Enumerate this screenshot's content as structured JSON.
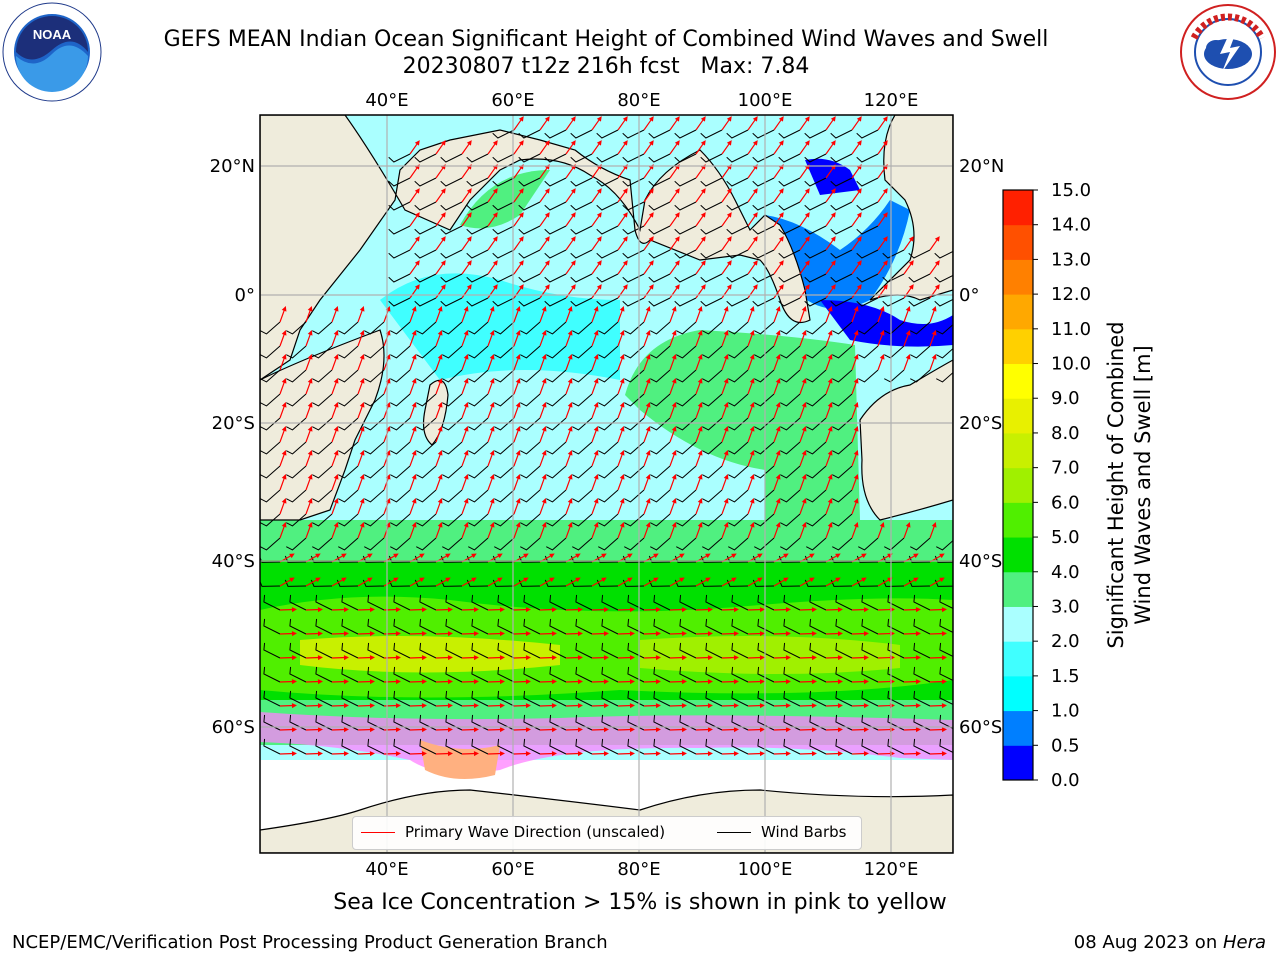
{
  "header": {
    "title": "GEFS MEAN Indian Ocean Significant Height of Combined Wind Waves and Swell",
    "subtitle": "20230807 t12z 216h fcst   Max: 7.84"
  },
  "logos": {
    "left": "noaa-logo",
    "left_text": "NOAA",
    "right": "nws-logo"
  },
  "map": {
    "region": "Indian Ocean",
    "lon_range": [
      20,
      130
    ],
    "lat_range": [
      -75,
      28
    ],
    "top_lon_ticks": [
      "40°E",
      "60°E",
      "80°E",
      "100°E",
      "120°E"
    ],
    "bottom_lon_ticks": [
      "40°E",
      "60°E",
      "80°E",
      "100°E",
      "120°E"
    ],
    "left_lat_ticks": [
      "20°N",
      "0°",
      "20°S",
      "40°S",
      "60°S"
    ],
    "right_lat_ticks": [
      "20°N",
      "0°",
      "20°S",
      "40°S",
      "60°S"
    ],
    "land_color": "#efecdc",
    "grid_color": "#b0b0b0",
    "arrow_color": "#ff0000",
    "barb_color": "#000000"
  },
  "legend": {
    "wave_label": "Primary Wave Direction (unscaled)",
    "barb_label": "Wind Barbs"
  },
  "colorbar": {
    "label_line1": "Significant Height of Combined",
    "label_line2": "Wind Waves and Swell [m]",
    "ticks": [
      "0.0",
      "0.5",
      "1.0",
      "1.5",
      "2.0",
      "3.0",
      "4.0",
      "5.0",
      "6.0",
      "7.0",
      "8.0",
      "9.0",
      "10.0",
      "11.0",
      "12.0",
      "13.0",
      "14.0",
      "15.0"
    ],
    "colors": [
      "#0000ff",
      "#007fff",
      "#00ffff",
      "#40ffff",
      "#aaffff",
      "#50f080",
      "#00e000",
      "#50ef00",
      "#a0f000",
      "#c8f000",
      "#e8f000",
      "#ffff00",
      "#ffd000",
      "#ffa800",
      "#ff8000",
      "#ff5000",
      "#ff2000"
    ]
  },
  "footer": {
    "ice_note": "Sea Ice Concentration > 15% is shown in pink to yellow",
    "credit_left": "NCEP/EMC/Verification Post Processing Product Generation Branch",
    "credit_right_date": "08 Aug 2023 on ",
    "credit_right_machine": "Hera"
  }
}
